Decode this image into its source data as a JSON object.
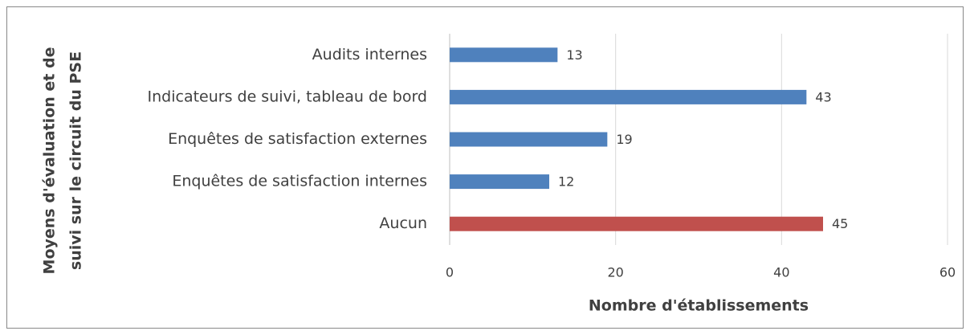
{
  "chart_data": {
    "type": "barh",
    "xlabel": "Nombre d'établissements",
    "ylabel": [
      "Moyens d'évaluation et de",
      "suivi sur le circuit du PSE"
    ],
    "categories": [
      "Audits internes",
      "Indicateurs de suivi, tableau de bord",
      "Enquêtes de satisfaction externes",
      "Enquêtes de satisfaction internes",
      "Aucun"
    ],
    "values": [
      13,
      43,
      19,
      12,
      45
    ],
    "colors": [
      "#4f81bd",
      "#4f81bd",
      "#4f81bd",
      "#4f81bd",
      "#c0504d"
    ],
    "xlim": [
      0,
      60
    ],
    "xticks": [
      0,
      20,
      40,
      60
    ],
    "grid": true
  }
}
